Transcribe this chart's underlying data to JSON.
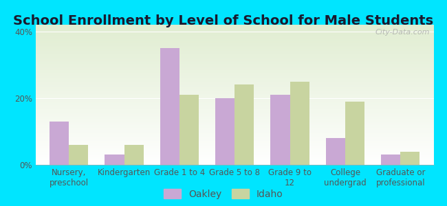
{
  "title": "School Enrollment by Level of School for Male Students",
  "categories": [
    "Nursery,\npreschool",
    "Kindergarten",
    "Grade 1 to 4",
    "Grade 5 to 8",
    "Grade 9 to\n12",
    "College\nundergrad",
    "Graduate or\nprofessional"
  ],
  "oakley": [
    13,
    3,
    35,
    20,
    21,
    8,
    3
  ],
  "idaho": [
    6,
    6,
    21,
    24,
    25,
    19,
    4
  ],
  "bar_color_oakley": "#c9a8d4",
  "bar_color_idaho": "#c8d4a0",
  "background_outer": "#00e5ff",
  "ylim": [
    0,
    42
  ],
  "yticks": [
    0,
    20,
    40
  ],
  "ytick_labels": [
    "0%",
    "20%",
    "40%"
  ],
  "legend_labels": [
    "Oakley",
    "Idaho"
  ],
  "title_fontsize": 14,
  "tick_fontsize": 8.5,
  "legend_fontsize": 10,
  "bar_width": 0.35,
  "watermark": "City-Data.com"
}
